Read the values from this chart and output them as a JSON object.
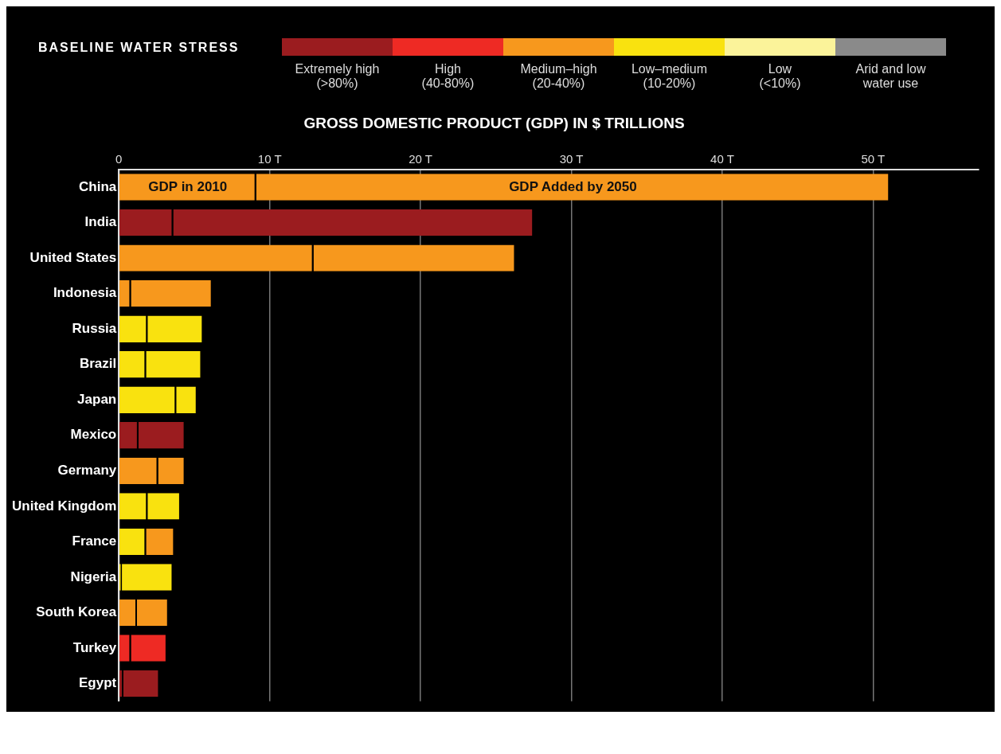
{
  "chart_data": {
    "type": "bar",
    "orientation": "horizontal",
    "stacked": true,
    "title": "GROSS DOMESTIC PRODUCT (GDP) IN $ TRILLIONS",
    "legend_title": "BASELINE WATER STRESS",
    "annotations": [
      "Extremely high\n(>80%)",
      "High\n(40-80%)",
      "Medium–high\n(20-40%)",
      "Low–medium\n(10-20%)",
      "Low\n(<10%)",
      "Arid and low\nwater use"
    ],
    "categories": [
      "China",
      "India",
      "United States",
      "Indonesia",
      "Russia",
      "Brazil",
      "Japan",
      "Mexico",
      "Germany",
      "United Kingdom",
      "France",
      "Nigeria",
      "South Korea",
      "Turkey",
      "Egypt"
    ],
    "series": [
      {
        "name": "GDP in 2010",
        "values": [
          9.1,
          3.6,
          12.9,
          0.8,
          1.9,
          1.8,
          3.8,
          1.3,
          2.6,
          1.9,
          1.8,
          0.2,
          1.2,
          0.8,
          0.3
        ],
        "colors": [
          "#f7981d",
          "#9b1c1f",
          "#f7981d",
          "#f7981d",
          "#f9e20f",
          "#f9e20f",
          "#f9e20f",
          "#9b1c1f",
          "#f7981d",
          "#f9e20f",
          "#f9e20f",
          "#f9e20f",
          "#f7981d",
          "#ee2a24",
          "#9b1c1f"
        ]
      },
      {
        "name": "GDP Added by 2050",
        "values": [
          42.0,
          23.9,
          13.4,
          5.4,
          3.7,
          3.7,
          1.4,
          3.1,
          1.8,
          2.2,
          1.9,
          3.4,
          2.1,
          2.4,
          2.4
        ],
        "colors": [
          "#f7981d",
          "#9b1c1f",
          "#f7981d",
          "#f7981d",
          "#f9e20f",
          "#f9e20f",
          "#f9e20f",
          "#9b1c1f",
          "#f7981d",
          "#f9e20f",
          "#f7981d",
          "#f9e20f",
          "#f7981d",
          "#ee2a24",
          "#9b1c1f"
        ]
      }
    ],
    "xlim": [
      0,
      57
    ],
    "xticks": [
      0,
      {
        "value": 10,
        "label": "10 T"
      },
      {
        "value": 20,
        "label": "20 T"
      },
      {
        "value": 30,
        "label": "30 T"
      },
      {
        "value": 40,
        "label": "40 T"
      },
      {
        "value": 50,
        "label": "50 T"
      }
    ],
    "grid": "x",
    "legend": false
  }
}
